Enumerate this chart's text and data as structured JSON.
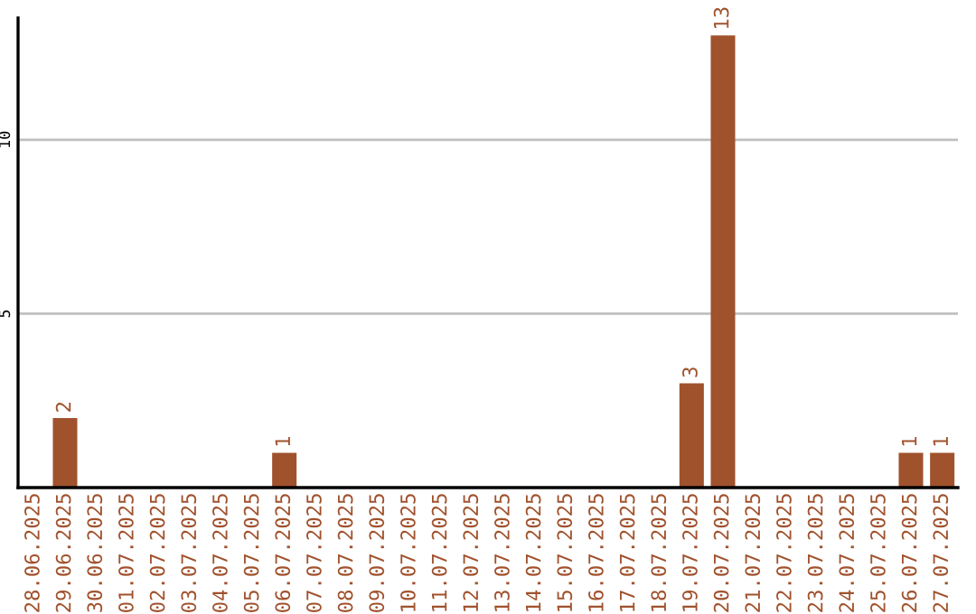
{
  "chart_data": {
    "type": "bar",
    "categories": [
      "28.06.2025",
      "29.06.2025",
      "30.06.2025",
      "01.07.2025",
      "02.07.2025",
      "03.07.2025",
      "04.07.2025",
      "05.07.2025",
      "06.07.2025",
      "07.07.2025",
      "08.07.2025",
      "09.07.2025",
      "10.07.2025",
      "11.07.2025",
      "12.07.2025",
      "13.07.2025",
      "14.07.2025",
      "15.07.2025",
      "16.07.2025",
      "17.07.2025",
      "18.07.2025",
      "19.07.2025",
      "20.07.2025",
      "21.07.2025",
      "22.07.2025",
      "23.07.2025",
      "24.07.2025",
      "25.07.2025",
      "26.07.2025",
      "27.07.2025"
    ],
    "values": [
      0,
      2,
      0,
      0,
      0,
      0,
      0,
      0,
      1,
      0,
      0,
      0,
      0,
      0,
      0,
      0,
      0,
      0,
      0,
      0,
      0,
      3,
      13,
      0,
      0,
      0,
      0,
      0,
      1,
      1
    ],
    "value_labels": [
      null,
      "2",
      null,
      null,
      null,
      null,
      null,
      null,
      "1",
      null,
      null,
      null,
      null,
      null,
      null,
      null,
      null,
      null,
      null,
      null,
      null,
      "3",
      "13",
      null,
      null,
      null,
      null,
      null,
      "1",
      "1"
    ],
    "color": "#a0522d",
    "ylim": [
      0,
      13.5
    ],
    "yticks": [
      5,
      10
    ],
    "grid": "y"
  }
}
